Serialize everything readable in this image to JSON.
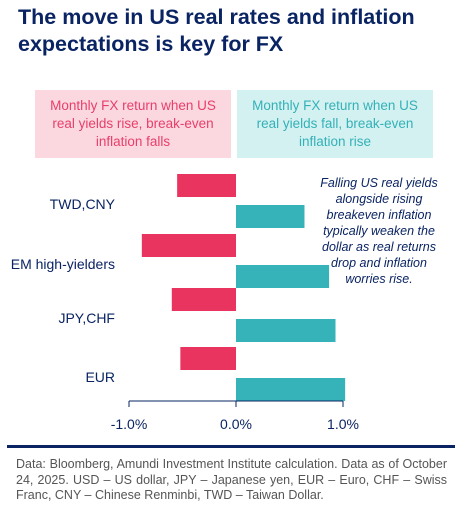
{
  "title": "The move in US real rates and inflation expectations is key for FX",
  "legend": {
    "left": "Monthly FX return when US real yields rise, break-even inflation falls",
    "right": "Monthly FX return when US real yields fall, break-even inflation rise"
  },
  "annotation": "Falling US real yields alongside rising breakeven inflation typically weaken the dollar as real returns drop and inflation worries rise.",
  "footer": "Data: Bloomberg, Amundi Investment Institute calculation. Data as of October 24, 2025. USD – US dollar, JPY – Japanese yen, EUR – Euro, CHF – Swiss Franc, CNY – Chinese Renminbi, TWD – Taiwan Dollar.",
  "colors": {
    "negative": "#e8345f",
    "positive": "#36b3b8",
    "text": "#0a2463"
  },
  "chart_data": {
    "type": "bar",
    "orientation": "horizontal",
    "categories": [
      "TWD,CNY",
      "EM high-yielders",
      "JPY,CHF",
      "EUR"
    ],
    "series": [
      {
        "values": [
          -0.55,
          -0.88,
          -0.6,
          -0.52
        ]
      },
      {
        "values": [
          0.64,
          0.87,
          0.93,
          1.02
        ]
      }
    ],
    "xlim": [
      -1.0,
      1.0
    ],
    "xticks": [
      "-1.0%",
      "0.0%",
      "1.0%"
    ],
    "xtick_values": [
      -1.0,
      0.0,
      1.0
    ],
    "grid": false
  }
}
